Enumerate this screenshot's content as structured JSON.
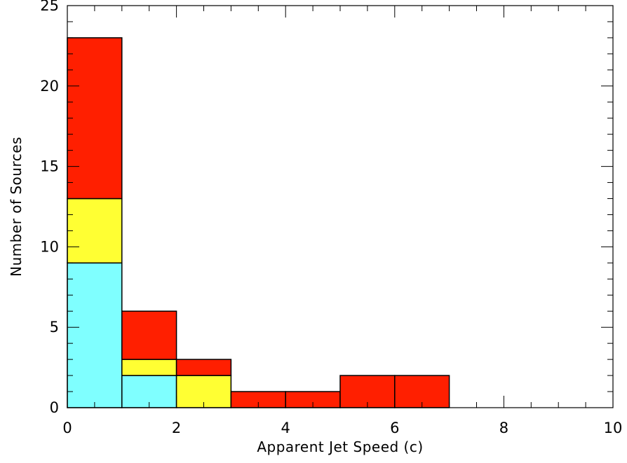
{
  "chart_data": {
    "type": "bar",
    "stacked": true,
    "xlabel": "Apparent Jet Speed (c)",
    "ylabel": "Number of Sources",
    "xlim": [
      0,
      10
    ],
    "ylim": [
      0,
      25
    ],
    "x_ticks": [
      0,
      2,
      4,
      6,
      8,
      10
    ],
    "y_ticks": [
      0,
      5,
      10,
      15,
      20,
      25
    ],
    "grid": false,
    "legend": "none",
    "bins": [
      {
        "x0": 0,
        "x1": 1
      },
      {
        "x0": 1,
        "x1": 2
      },
      {
        "x0": 2,
        "x1": 3
      },
      {
        "x0": 3,
        "x1": 4
      },
      {
        "x0": 4,
        "x1": 5
      },
      {
        "x0": 5,
        "x1": 6
      },
      {
        "x0": 6,
        "x1": 7
      }
    ],
    "series": [
      {
        "color": "#7fffff",
        "values": [
          9,
          2,
          0,
          0,
          0,
          0,
          0
        ]
      },
      {
        "color": "#ffff33",
        "values": [
          4,
          1,
          2,
          0,
          0,
          0,
          0
        ]
      },
      {
        "color": "#ff1f00",
        "values": [
          10,
          3,
          1,
          1,
          1,
          2,
          2
        ]
      }
    ]
  }
}
